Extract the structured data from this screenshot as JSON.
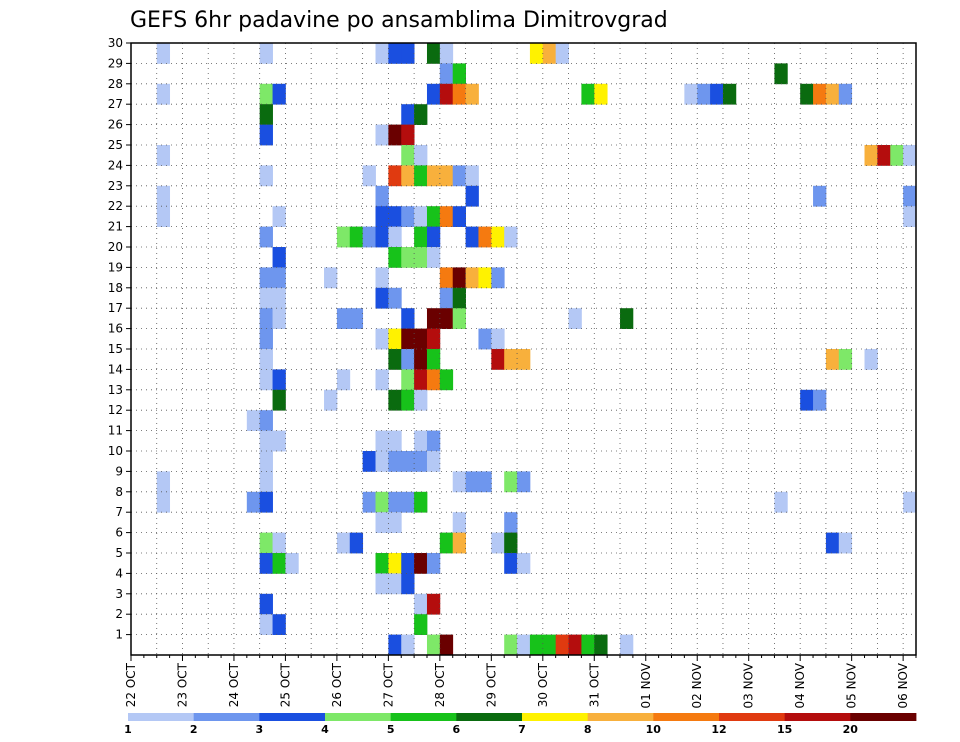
{
  "chart_data": {
    "type": "heatmap",
    "title": "GEFS 6hr padavine po ansamblima Dimitrovgrad",
    "y_ticks": [
      "1",
      "2",
      "3",
      "4",
      "5",
      "6",
      "7",
      "8",
      "9",
      "10",
      "11",
      "12",
      "13",
      "14",
      "15",
      "16",
      "17",
      "18",
      "19",
      "20",
      "21",
      "22",
      "23",
      "24",
      "25",
      "26",
      "27",
      "28",
      "29",
      "30"
    ],
    "y_range": [
      0,
      30
    ],
    "x_ticks": [
      "22 OCT",
      "23 OCT",
      "24 OCT",
      "25 OCT",
      "26 OCT",
      "27 OCT",
      "28 OCT",
      "29 OCT",
      "30 OCT",
      "31 OCT",
      "01 NOV",
      "02 NOV",
      "03 NOV",
      "04 NOV",
      "05 NOV",
      "06 NOV"
    ],
    "x_range_steps": [
      0,
      61
    ],
    "steps_per_day": 4,
    "grid": true,
    "colorbar": {
      "labels": [
        "1",
        "2",
        "3",
        "4",
        "5",
        "6",
        "7",
        "8",
        "10",
        "12",
        "15",
        "20"
      ],
      "colors": [
        "#b4c8f5",
        "#6e96ee",
        "#1a4fe0",
        "#7ee868",
        "#17c21a",
        "#0a6b0f",
        "#fff200",
        "#f8b03c",
        "#f57a10",
        "#e03a10",
        "#b40d0d",
        "#6a0000"
      ]
    },
    "cells": [
      [
        2,
        30,
        0
      ],
      [
        10,
        30,
        0
      ],
      [
        19,
        30,
        0
      ],
      [
        20,
        30,
        2
      ],
      [
        21,
        30,
        2
      ],
      [
        23,
        30,
        5
      ],
      [
        24,
        30,
        0
      ],
      [
        31,
        30,
        6
      ],
      [
        32,
        30,
        7
      ],
      [
        33,
        30,
        0
      ],
      [
        24,
        29,
        1
      ],
      [
        25,
        29,
        4
      ],
      [
        50,
        29,
        5
      ],
      [
        2,
        28,
        0
      ],
      [
        10,
        28,
        3
      ],
      [
        11,
        28,
        2
      ],
      [
        23,
        28,
        2
      ],
      [
        24,
        28,
        10
      ],
      [
        25,
        28,
        8
      ],
      [
        26,
        28,
        7
      ],
      [
        35,
        28,
        4
      ],
      [
        36,
        28,
        6
      ],
      [
        43,
        28,
        0
      ],
      [
        44,
        28,
        1
      ],
      [
        45,
        28,
        2
      ],
      [
        46,
        28,
        5
      ],
      [
        52,
        28,
        5
      ],
      [
        53,
        28,
        8
      ],
      [
        54,
        28,
        7
      ],
      [
        55,
        28,
        1
      ],
      [
        10,
        27,
        5
      ],
      [
        21,
        27,
        2
      ],
      [
        22,
        27,
        5
      ],
      [
        10,
        26,
        2
      ],
      [
        19,
        26,
        0
      ],
      [
        20,
        26,
        11
      ],
      [
        21,
        26,
        10
      ],
      [
        2,
        25,
        0
      ],
      [
        21,
        25,
        3
      ],
      [
        22,
        25,
        0
      ],
      [
        57,
        25,
        7
      ],
      [
        58,
        25,
        10
      ],
      [
        59,
        25,
        3
      ],
      [
        60,
        25,
        0
      ],
      [
        10,
        24,
        0
      ],
      [
        18,
        24,
        0
      ],
      [
        20,
        24,
        9
      ],
      [
        21,
        24,
        7
      ],
      [
        22,
        24,
        4
      ],
      [
        23,
        24,
        7
      ],
      [
        24,
        24,
        7
      ],
      [
        25,
        24,
        1
      ],
      [
        26,
        24,
        0
      ],
      [
        2,
        23,
        0
      ],
      [
        19,
        23,
        1
      ],
      [
        26,
        23,
        2
      ],
      [
        53,
        23,
        1
      ],
      [
        60,
        23,
        1
      ],
      [
        2,
        22,
        0
      ],
      [
        11,
        22,
        0
      ],
      [
        19,
        22,
        2
      ],
      [
        20,
        22,
        2
      ],
      [
        21,
        22,
        1
      ],
      [
        22,
        22,
        0
      ],
      [
        23,
        22,
        4
      ],
      [
        24,
        22,
        8
      ],
      [
        25,
        22,
        2
      ],
      [
        60,
        22,
        0
      ],
      [
        10,
        21,
        1
      ],
      [
        16,
        21,
        3
      ],
      [
        17,
        21,
        4
      ],
      [
        18,
        21,
        1
      ],
      [
        19,
        21,
        2
      ],
      [
        20,
        21,
        0
      ],
      [
        22,
        21,
        4
      ],
      [
        23,
        21,
        2
      ],
      [
        26,
        21,
        2
      ],
      [
        27,
        21,
        8
      ],
      [
        28,
        21,
        6
      ],
      [
        29,
        21,
        0
      ],
      [
        11,
        20,
        2
      ],
      [
        20,
        20,
        4
      ],
      [
        21,
        20,
        3
      ],
      [
        22,
        20,
        3
      ],
      [
        23,
        20,
        0
      ],
      [
        10,
        19,
        1
      ],
      [
        11,
        19,
        1
      ],
      [
        15,
        19,
        0
      ],
      [
        19,
        19,
        0
      ],
      [
        24,
        19,
        8
      ],
      [
        25,
        19,
        11
      ],
      [
        26,
        19,
        7
      ],
      [
        27,
        19,
        6
      ],
      [
        28,
        19,
        1
      ],
      [
        10,
        18,
        0
      ],
      [
        11,
        18,
        0
      ],
      [
        19,
        18,
        2
      ],
      [
        20,
        18,
        1
      ],
      [
        24,
        18,
        1
      ],
      [
        25,
        18,
        5
      ],
      [
        10,
        17,
        1
      ],
      [
        11,
        17,
        0
      ],
      [
        16,
        17,
        1
      ],
      [
        17,
        17,
        1
      ],
      [
        21,
        17,
        2
      ],
      [
        23,
        17,
        11
      ],
      [
        24,
        17,
        11
      ],
      [
        25,
        17,
        3
      ],
      [
        34,
        17,
        0
      ],
      [
        38,
        17,
        5
      ],
      [
        10,
        16,
        1
      ],
      [
        19,
        16,
        0
      ],
      [
        20,
        16,
        6
      ],
      [
        21,
        16,
        11
      ],
      [
        22,
        16,
        11
      ],
      [
        23,
        16,
        10
      ],
      [
        27,
        16,
        1
      ],
      [
        28,
        16,
        0
      ],
      [
        10,
        15,
        0
      ],
      [
        20,
        15,
        5
      ],
      [
        21,
        15,
        1
      ],
      [
        22,
        15,
        11
      ],
      [
        23,
        15,
        4
      ],
      [
        28,
        15,
        10
      ],
      [
        29,
        15,
        7
      ],
      [
        30,
        15,
        7
      ],
      [
        54,
        15,
        7
      ],
      [
        55,
        15,
        3
      ],
      [
        57,
        15,
        0
      ],
      [
        10,
        14,
        0
      ],
      [
        11,
        14,
        2
      ],
      [
        16,
        14,
        0
      ],
      [
        19,
        14,
        0
      ],
      [
        21,
        14,
        3
      ],
      [
        22,
        14,
        10
      ],
      [
        23,
        14,
        8
      ],
      [
        24,
        14,
        4
      ],
      [
        15,
        13,
        0
      ],
      [
        11,
        13,
        5
      ],
      [
        20,
        13,
        5
      ],
      [
        21,
        13,
        4
      ],
      [
        22,
        13,
        0
      ],
      [
        52,
        13,
        2
      ],
      [
        53,
        13,
        1
      ],
      [
        9,
        12,
        0
      ],
      [
        10,
        12,
        1
      ],
      [
        10,
        11,
        0
      ],
      [
        11,
        11,
        0
      ],
      [
        19,
        11,
        0
      ],
      [
        20,
        11,
        0
      ],
      [
        22,
        11,
        0
      ],
      [
        23,
        11,
        1
      ],
      [
        10,
        10,
        0
      ],
      [
        18,
        10,
        2
      ],
      [
        19,
        10,
        0
      ],
      [
        20,
        10,
        1
      ],
      [
        21,
        10,
        1
      ],
      [
        22,
        10,
        1
      ],
      [
        23,
        10,
        0
      ],
      [
        2,
        9,
        0
      ],
      [
        10,
        9,
        0
      ],
      [
        25,
        9,
        0
      ],
      [
        26,
        9,
        1
      ],
      [
        27,
        9,
        1
      ],
      [
        29,
        9,
        3
      ],
      [
        30,
        9,
        1
      ],
      [
        2,
        8,
        0
      ],
      [
        9,
        8,
        1
      ],
      [
        10,
        8,
        2
      ],
      [
        18,
        8,
        1
      ],
      [
        19,
        8,
        3
      ],
      [
        20,
        8,
        1
      ],
      [
        21,
        8,
        1
      ],
      [
        22,
        8,
        4
      ],
      [
        50,
        8,
        0
      ],
      [
        60,
        8,
        0
      ],
      [
        19,
        7,
        0
      ],
      [
        20,
        7,
        0
      ],
      [
        25,
        7,
        0
      ],
      [
        29,
        7,
        1
      ],
      [
        10,
        6,
        3
      ],
      [
        11,
        6,
        0
      ],
      [
        16,
        6,
        0
      ],
      [
        17,
        6,
        2
      ],
      [
        24,
        6,
        4
      ],
      [
        25,
        6,
        7
      ],
      [
        28,
        6,
        0
      ],
      [
        29,
        6,
        5
      ],
      [
        54,
        6,
        2
      ],
      [
        55,
        6,
        0
      ],
      [
        10,
        5,
        2
      ],
      [
        11,
        5,
        4
      ],
      [
        12,
        5,
        0
      ],
      [
        19,
        5,
        4
      ],
      [
        20,
        5,
        6
      ],
      [
        21,
        5,
        2
      ],
      [
        22,
        5,
        11
      ],
      [
        23,
        5,
        1
      ],
      [
        29,
        5,
        2
      ],
      [
        30,
        5,
        0
      ],
      [
        19,
        4,
        0
      ],
      [
        20,
        4,
        0
      ],
      [
        21,
        4,
        2
      ],
      [
        10,
        3,
        2
      ],
      [
        22,
        3,
        0
      ],
      [
        23,
        3,
        10
      ],
      [
        10,
        2,
        0
      ],
      [
        11,
        2,
        2
      ],
      [
        22,
        2,
        4
      ],
      [
        20,
        1,
        2
      ],
      [
        21,
        1,
        0
      ],
      [
        23,
        1,
        3
      ],
      [
        24,
        1,
        11
      ],
      [
        29,
        1,
        3
      ],
      [
        30,
        1,
        0
      ],
      [
        31,
        1,
        4
      ],
      [
        32,
        1,
        4
      ],
      [
        33,
        1,
        9
      ],
      [
        34,
        1,
        10
      ],
      [
        35,
        1,
        4
      ],
      [
        36,
        1,
        5
      ],
      [
        38,
        1,
        0
      ]
    ]
  }
}
